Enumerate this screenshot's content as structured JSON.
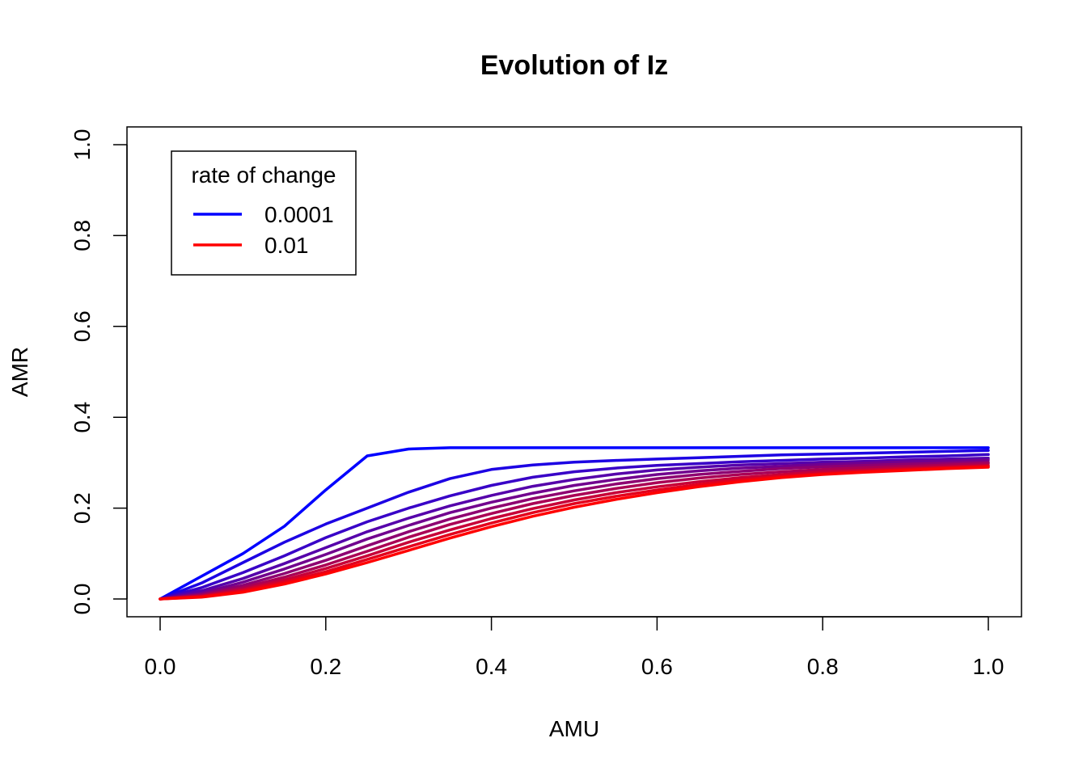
{
  "chart_data": {
    "type": "line",
    "title": "Evolution of Iz",
    "xlabel": "AMU",
    "ylabel": "AMR",
    "xlim": [
      0,
      1
    ],
    "ylim": [
      0,
      1
    ],
    "x_ticks": [
      "0.0",
      "0.2",
      "0.4",
      "0.6",
      "0.8",
      "1.0"
    ],
    "y_ticks": [
      "0.0",
      "0.2",
      "0.4",
      "0.6",
      "0.8",
      "1.0"
    ],
    "grid": false,
    "legend": {
      "title": "rate of change",
      "placement": "top-left",
      "entries": [
        {
          "label": "0.0001",
          "color": "#0000ff"
        },
        {
          "label": "0.01",
          "color": "#ff0000"
        }
      ]
    },
    "x": [
      0.0,
      0.05,
      0.1,
      0.15,
      0.2,
      0.25,
      0.3,
      0.35,
      0.4,
      0.45,
      0.5,
      0.55,
      0.6,
      0.65,
      0.7,
      0.75,
      0.8,
      0.85,
      0.9,
      0.95,
      1.0
    ],
    "series": [
      {
        "color": "#0000ff",
        "values": [
          0.0,
          0.05,
          0.1,
          0.16,
          0.24,
          0.315,
          0.33,
          0.333,
          0.333,
          0.333,
          0.333,
          0.333,
          0.333,
          0.333,
          0.333,
          0.333,
          0.333,
          0.333,
          0.333,
          0.333,
          0.333
        ]
      },
      {
        "color": "#1c00e3",
        "values": [
          0.0,
          0.035,
          0.08,
          0.125,
          0.165,
          0.2,
          0.235,
          0.265,
          0.285,
          0.295,
          0.301,
          0.305,
          0.308,
          0.311,
          0.314,
          0.317,
          0.319,
          0.321,
          0.323,
          0.325,
          0.327
        ]
      },
      {
        "color": "#3800c7",
        "values": [
          0.0,
          0.025,
          0.058,
          0.095,
          0.135,
          0.17,
          0.2,
          0.227,
          0.25,
          0.268,
          0.28,
          0.288,
          0.294,
          0.298,
          0.302,
          0.305,
          0.308,
          0.31,
          0.313,
          0.315,
          0.318
        ]
      },
      {
        "color": "#5500aa",
        "values": [
          0.0,
          0.018,
          0.045,
          0.078,
          0.113,
          0.148,
          0.178,
          0.205,
          0.228,
          0.248,
          0.263,
          0.275,
          0.284,
          0.29,
          0.295,
          0.298,
          0.301,
          0.303,
          0.306,
          0.308,
          0.31
        ]
      },
      {
        "color": "#71008e",
        "values": [
          0.0,
          0.013,
          0.037,
          0.066,
          0.098,
          0.132,
          0.162,
          0.19,
          0.213,
          0.233,
          0.25,
          0.263,
          0.274,
          0.282,
          0.288,
          0.292,
          0.296,
          0.299,
          0.302,
          0.304,
          0.306
        ]
      },
      {
        "color": "#8e0071",
        "values": [
          0.0,
          0.01,
          0.03,
          0.056,
          0.085,
          0.117,
          0.148,
          0.176,
          0.2,
          0.221,
          0.238,
          0.253,
          0.265,
          0.274,
          0.281,
          0.287,
          0.291,
          0.294,
          0.297,
          0.299,
          0.301
        ]
      },
      {
        "color": "#aa0055",
        "values": [
          0.0,
          0.008,
          0.025,
          0.048,
          0.075,
          0.105,
          0.136,
          0.164,
          0.188,
          0.21,
          0.228,
          0.243,
          0.256,
          0.266,
          0.274,
          0.28,
          0.285,
          0.289,
          0.292,
          0.295,
          0.298
        ]
      },
      {
        "color": "#c70038",
        "values": [
          0.0,
          0.006,
          0.021,
          0.042,
          0.067,
          0.095,
          0.125,
          0.152,
          0.177,
          0.199,
          0.218,
          0.234,
          0.247,
          0.258,
          0.267,
          0.274,
          0.28,
          0.284,
          0.288,
          0.291,
          0.294
        ]
      },
      {
        "color": "#e3001c",
        "values": [
          0.0,
          0.005,
          0.018,
          0.037,
          0.06,
          0.087,
          0.115,
          0.142,
          0.167,
          0.19,
          0.21,
          0.226,
          0.24,
          0.252,
          0.262,
          0.27,
          0.276,
          0.281,
          0.285,
          0.289,
          0.292
        ]
      },
      {
        "color": "#ff0000",
        "values": [
          0.0,
          0.004,
          0.015,
          0.033,
          0.055,
          0.08,
          0.107,
          0.134,
          0.159,
          0.182,
          0.202,
          0.219,
          0.234,
          0.247,
          0.258,
          0.267,
          0.274,
          0.279,
          0.283,
          0.287,
          0.29
        ]
      }
    ]
  }
}
